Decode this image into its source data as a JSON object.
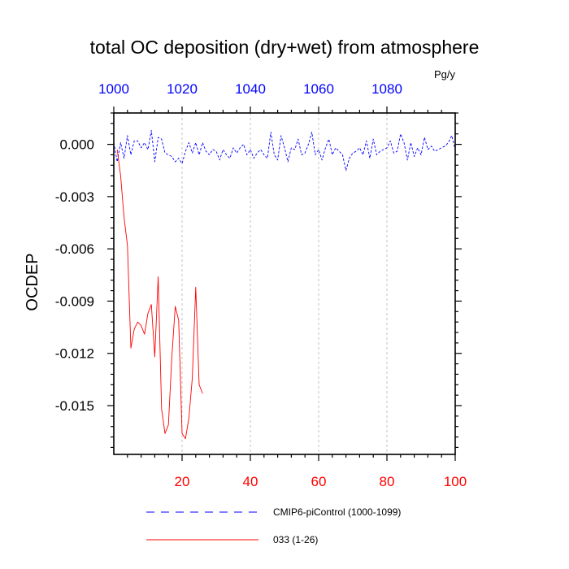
{
  "chart_data": {
    "type": "line",
    "title": "total OC deposition (dry+wet) from atmosphere",
    "units": "Pg/y",
    "ylabel": "OCDEP",
    "xlabel": "",
    "xlim": [
      0,
      100
    ],
    "ylim": [
      -0.0178,
      0.0018
    ],
    "x_ticks_bottom": [
      20,
      40,
      60,
      80,
      100
    ],
    "x_ticks_top": [
      1000,
      1020,
      1040,
      1060,
      1080
    ],
    "y_ticks": [
      0.0,
      -0.003,
      -0.006,
      -0.009,
      -0.012,
      -0.015
    ],
    "y_tick_labels": [
      "0.000",
      "-0.003",
      "-0.006",
      "-0.009",
      "-0.012",
      "-0.015"
    ],
    "grid_x": [
      20,
      40,
      60,
      80
    ],
    "colors": {
      "control": "#0000ff",
      "exp": "#ff0000",
      "tick_bottom": "#ff0000",
      "tick_top": "#0000ff"
    },
    "series": [
      {
        "name": "CMIP6-piControl (1000-1099)",
        "style": "dashed",
        "color": "#0000ff",
        "x": [
          0,
          1,
          2,
          3,
          4,
          5,
          6,
          7,
          8,
          9,
          10,
          11,
          12,
          13,
          14,
          15,
          16,
          17,
          18,
          19,
          20,
          21,
          22,
          23,
          24,
          25,
          26,
          27,
          28,
          29,
          30,
          31,
          32,
          33,
          34,
          35,
          36,
          37,
          38,
          39,
          40,
          41,
          42,
          43,
          44,
          45,
          46,
          47,
          48,
          49,
          50,
          51,
          52,
          53,
          54,
          55,
          56,
          57,
          58,
          59,
          60,
          61,
          62,
          63,
          64,
          65,
          66,
          67,
          68,
          69,
          70,
          71,
          72,
          73,
          74,
          75,
          76,
          77,
          78,
          79,
          80,
          81,
          82,
          83,
          84,
          85,
          86,
          87,
          88,
          89,
          90,
          91,
          92,
          93,
          94,
          95,
          96,
          97,
          98,
          99,
          100
        ],
        "values": [
          0.0001,
          -0.001,
          0.0001,
          -0.0008,
          0.0005,
          -0.0006,
          0.0002,
          0.0002,
          -0.0002,
          0.0001,
          -0.0003,
          0.0008,
          -0.001,
          0.0004,
          0.0003,
          -0.0005,
          -0.0006,
          -0.0007,
          -0.001,
          -0.0008,
          -0.0011,
          -0.0004,
          0.0001,
          -0.0005,
          0.0001,
          -0.0006,
          0.0001,
          -0.0004,
          -0.0006,
          -0.0003,
          -0.0004,
          -0.0009,
          -0.0003,
          -0.0006,
          -0.0008,
          -0.0002,
          -0.0005,
          -0.0002,
          0.0,
          -0.0006,
          -0.0003,
          -0.0008,
          -0.0005,
          -0.0003,
          -0.0006,
          -0.0008,
          0.0007,
          -0.0006,
          -0.0009,
          0.0005,
          -0.0002,
          -0.001,
          -0.0002,
          -0.0003,
          0.0003,
          -0.0006,
          -0.0005,
          0.0,
          0.0007,
          -0.0006,
          -0.0003,
          -0.0009,
          -0.0002,
          0.0003,
          -0.0006,
          -0.0002,
          -0.0004,
          -0.0006,
          -0.0015,
          -0.0008,
          -0.0005,
          -0.0004,
          -0.0002,
          -0.0006,
          0.0002,
          -0.0008,
          0.0003,
          -0.0006,
          -0.0004,
          -0.0003,
          -0.0002,
          0.0002,
          -0.0005,
          -0.0004,
          0.0006,
          0.0001,
          -0.0009,
          0.0001,
          -0.0007,
          -0.0002,
          -0.0006,
          0.0004,
          -0.0003,
          -0.0001,
          -0.0004,
          -0.0003,
          -0.0002,
          -0.0001,
          0.0001,
          0.0005,
          -0.0003
        ]
      },
      {
        "name": "033 (1-26)",
        "style": "solid",
        "color": "#ff0000",
        "x": [
          1,
          2,
          3,
          4,
          5,
          6,
          7,
          8,
          9,
          10,
          11,
          12,
          13,
          14,
          15,
          16,
          17,
          18,
          19,
          20,
          21,
          22,
          23,
          24,
          25,
          26
        ],
        "values": [
          -0.0003,
          -0.0018,
          -0.0042,
          -0.0058,
          -0.0117,
          -0.0106,
          -0.0102,
          -0.0104,
          -0.0109,
          -0.0097,
          -0.0092,
          -0.0122,
          -0.0076,
          -0.0152,
          -0.0166,
          -0.0161,
          -0.0122,
          -0.0093,
          -0.0101,
          -0.0166,
          -0.0169,
          -0.0157,
          -0.0134,
          -0.0082,
          -0.0138,
          -0.0143
        ]
      }
    ],
    "legend": [
      {
        "label": "CMIP6-piControl (1000-1099)",
        "style": "dashed",
        "color": "#0000ff"
      },
      {
        "label": "033 (1-26)",
        "style": "solid",
        "color": "#ff0000"
      }
    ],
    "legend_placement": "bottom"
  }
}
